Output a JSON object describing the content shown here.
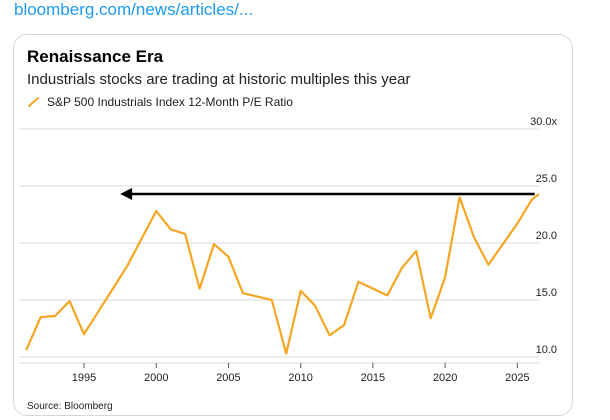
{
  "header": {
    "link_text": "bloomberg.com/news/articles/..."
  },
  "chart_data": {
    "type": "line",
    "title": "Renaissance Era",
    "subtitle": "Industrials stocks are trading at historic multiples this year",
    "source": "Source: Bloomberg",
    "xlabel": "",
    "ylabel": "",
    "xlim": [
      1990.5,
      2026.5
    ],
    "ylim": [
      10,
      30
    ],
    "grid": true,
    "legend_placement": "top-left",
    "x_ticks": [
      {
        "value": 1995,
        "label": "1995"
      },
      {
        "value": 2000,
        "label": "2000"
      },
      {
        "value": 2005,
        "label": "2005"
      },
      {
        "value": 2010,
        "label": "2010"
      },
      {
        "value": 2015,
        "label": "2015"
      },
      {
        "value": 2020,
        "label": "2020"
      },
      {
        "value": 2025,
        "label": "2025"
      }
    ],
    "y_ticks": [
      {
        "value": 10,
        "label": "10.0"
      },
      {
        "value": 15,
        "label": "15.0"
      },
      {
        "value": 20,
        "label": "20.0"
      },
      {
        "value": 25,
        "label": "25.0"
      },
      {
        "value": 30,
        "label": "30.0x"
      }
    ],
    "series": [
      {
        "name": "S&P 500 Industrials Index 12-Month P/E Ratio",
        "color": "#f5a623",
        "x": [
          1991,
          1992,
          1993,
          1994,
          1995,
          1996,
          1997,
          1998,
          1999,
          2000,
          2001,
          2002,
          2003,
          2004,
          2005,
          2006,
          2007,
          2008,
          2009,
          2010,
          2011,
          2012,
          2013,
          2014,
          2015,
          2016,
          2017,
          2018,
          2019,
          2020,
          2021,
          2022,
          2023,
          2024,
          2025,
          2026,
          2026.5
        ],
        "y": [
          10.6,
          13.5,
          13.6,
          14.9,
          12.0,
          14.0,
          16.0,
          18.0,
          20.4,
          22.8,
          21.2,
          20.8,
          16.0,
          19.9,
          18.8,
          15.6,
          15.3,
          15.0,
          10.3,
          15.8,
          14.5,
          11.9,
          12.8,
          16.6,
          16.0,
          15.4,
          17.8,
          19.3,
          13.4,
          17.0,
          24.0,
          20.5,
          18.1,
          19.9,
          21.7,
          23.8,
          24.3
        ]
      }
    ],
    "annotations": [
      {
        "type": "arrow",
        "direction": "left",
        "color": "#000000",
        "y": 24.3,
        "x_start": 2026.2,
        "x_end": 1997.5
      }
    ]
  }
}
